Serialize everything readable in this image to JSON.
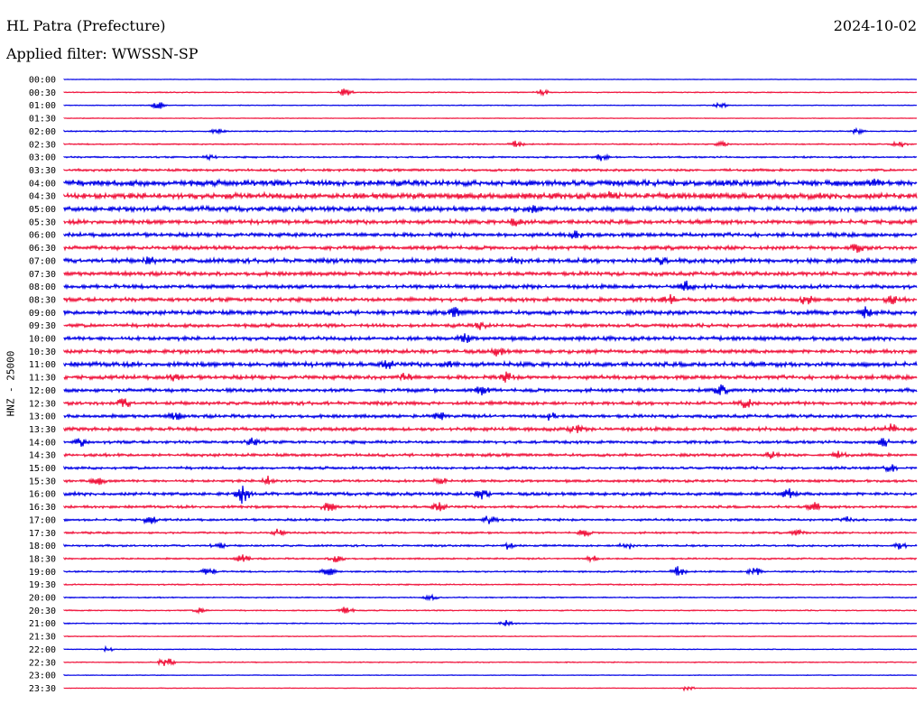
{
  "header": {
    "station": "HL Patra (Prefecture)",
    "date": "2024-10-02",
    "filter": "Applied filter: WWSSN-SP"
  },
  "chart_data": {
    "type": "line",
    "title": "HL Patra (Prefecture)",
    "ylabel": "HNZ - 25000",
    "xlabel": "",
    "colors": {
      "odd": "#0000e6",
      "even": "#f0143c"
    },
    "rows": [
      {
        "label": "00:00",
        "amp": 0.3,
        "bursts": []
      },
      {
        "label": "00:30",
        "amp": 0.6,
        "bursts": [
          [
            0.33,
            5
          ],
          [
            0.56,
            4
          ]
        ]
      },
      {
        "label": "01:00",
        "amp": 0.5,
        "bursts": [
          [
            0.11,
            5
          ],
          [
            0.77,
            3
          ]
        ]
      },
      {
        "label": "01:30",
        "amp": 0.4,
        "bursts": []
      },
      {
        "label": "02:00",
        "amp": 0.7,
        "bursts": [
          [
            0.18,
            3
          ],
          [
            0.93,
            3
          ]
        ]
      },
      {
        "label": "02:30",
        "amp": 0.8,
        "bursts": [
          [
            0.53,
            4
          ],
          [
            0.77,
            3
          ],
          [
            0.98,
            4
          ]
        ]
      },
      {
        "label": "03:00",
        "amp": 1.0,
        "bursts": [
          [
            0.63,
            4
          ],
          [
            0.17,
            3
          ]
        ]
      },
      {
        "label": "03:30",
        "amp": 1.5,
        "bursts": []
      },
      {
        "label": "04:00",
        "amp": 3.6,
        "bursts": [
          [
            0.95,
            5
          ]
        ]
      },
      {
        "label": "04:30",
        "amp": 3.6,
        "bursts": [
          [
            0.64,
            5
          ]
        ]
      },
      {
        "label": "05:00",
        "amp": 3.0,
        "bursts": [
          [
            0.55,
            4
          ]
        ]
      },
      {
        "label": "05:30",
        "amp": 2.6,
        "bursts": [
          [
            0.53,
            5
          ]
        ]
      },
      {
        "label": "06:00",
        "amp": 2.4,
        "bursts": [
          [
            0.6,
            5
          ]
        ]
      },
      {
        "label": "06:30",
        "amp": 2.4,
        "bursts": [
          [
            0.93,
            5
          ]
        ]
      },
      {
        "label": "07:00",
        "amp": 2.8,
        "bursts": [
          [
            0.1,
            5
          ],
          [
            0.53,
            6
          ],
          [
            0.7,
            5
          ]
        ]
      },
      {
        "label": "07:30",
        "amp": 2.4,
        "bursts": []
      },
      {
        "label": "08:00",
        "amp": 2.4,
        "bursts": [
          [
            0.73,
            6
          ]
        ]
      },
      {
        "label": "08:30",
        "amp": 2.4,
        "bursts": [
          [
            0.71,
            6
          ],
          [
            0.87,
            6
          ],
          [
            0.97,
            5
          ]
        ]
      },
      {
        "label": "09:00",
        "amp": 2.6,
        "bursts": [
          [
            0.46,
            6
          ],
          [
            0.94,
            6
          ]
        ]
      },
      {
        "label": "09:30",
        "amp": 2.2,
        "bursts": [
          [
            0.49,
            5
          ]
        ]
      },
      {
        "label": "10:00",
        "amp": 2.4,
        "bursts": [
          [
            0.47,
            6
          ]
        ]
      },
      {
        "label": "10:30",
        "amp": 2.4,
        "bursts": [
          [
            0.51,
            6
          ]
        ]
      },
      {
        "label": "11:00",
        "amp": 2.8,
        "bursts": [
          [
            0.38,
            5
          ],
          [
            0.45,
            5
          ]
        ]
      },
      {
        "label": "11:30",
        "amp": 2.4,
        "bursts": [
          [
            0.13,
            5
          ],
          [
            0.4,
            5
          ],
          [
            0.52,
            6
          ]
        ]
      },
      {
        "label": "12:00",
        "amp": 2.2,
        "bursts": [
          [
            0.49,
            6
          ],
          [
            0.77,
            6
          ]
        ]
      },
      {
        "label": "12:30",
        "amp": 2.2,
        "bursts": [
          [
            0.07,
            6
          ],
          [
            0.8,
            6
          ]
        ]
      },
      {
        "label": "13:00",
        "amp": 2.0,
        "bursts": [
          [
            0.44,
            5
          ],
          [
            0.57,
            5
          ],
          [
            0.13,
            5
          ]
        ]
      },
      {
        "label": "13:30",
        "amp": 2.2,
        "bursts": [
          [
            0.6,
            5
          ],
          [
            0.97,
            6
          ]
        ]
      },
      {
        "label": "14:00",
        "amp": 1.8,
        "bursts": [
          [
            0.02,
            5
          ],
          [
            0.22,
            5
          ],
          [
            0.96,
            6
          ]
        ]
      },
      {
        "label": "14:30",
        "amp": 1.8,
        "bursts": [
          [
            0.83,
            5
          ],
          [
            0.91,
            5
          ]
        ]
      },
      {
        "label": "15:00",
        "amp": 1.6,
        "bursts": [
          [
            0.97,
            5
          ]
        ]
      },
      {
        "label": "15:30",
        "amp": 1.6,
        "bursts": [
          [
            0.04,
            5
          ],
          [
            0.24,
            6
          ],
          [
            0.44,
            5
          ]
        ]
      },
      {
        "label": "16:00",
        "amp": 2.0,
        "bursts": [
          [
            0.21,
            12
          ],
          [
            0.49,
            6
          ],
          [
            0.85,
            6
          ]
        ]
      },
      {
        "label": "16:30",
        "amp": 1.6,
        "bursts": [
          [
            0.31,
            6
          ],
          [
            0.44,
            5
          ],
          [
            0.88,
            5
          ]
        ]
      },
      {
        "label": "17:00",
        "amp": 1.4,
        "bursts": [
          [
            0.5,
            6
          ],
          [
            0.1,
            5
          ],
          [
            0.92,
            4
          ]
        ]
      },
      {
        "label": "17:30",
        "amp": 1.2,
        "bursts": [
          [
            0.25,
            4
          ],
          [
            0.61,
            4
          ],
          [
            0.86,
            4
          ]
        ]
      },
      {
        "label": "18:00",
        "amp": 1.2,
        "bursts": [
          [
            0.18,
            4
          ],
          [
            0.52,
            4
          ],
          [
            0.66,
            5
          ],
          [
            0.98,
            4
          ]
        ]
      },
      {
        "label": "18:30",
        "amp": 1.0,
        "bursts": [
          [
            0.21,
            5
          ],
          [
            0.32,
            6
          ],
          [
            0.62,
            4
          ]
        ]
      },
      {
        "label": "19:00",
        "amp": 1.0,
        "bursts": [
          [
            0.17,
            5
          ],
          [
            0.31,
            5
          ],
          [
            0.72,
            6
          ],
          [
            0.81,
            6
          ]
        ]
      },
      {
        "label": "19:30",
        "amp": 0.8,
        "bursts": []
      },
      {
        "label": "20:00",
        "amp": 0.7,
        "bursts": [
          [
            0.43,
            3
          ]
        ]
      },
      {
        "label": "20:30",
        "amp": 0.7,
        "bursts": [
          [
            0.33,
            5
          ],
          [
            0.16,
            3
          ]
        ]
      },
      {
        "label": "21:00",
        "amp": 0.7,
        "bursts": [
          [
            0.52,
            4
          ]
        ]
      },
      {
        "label": "21:30",
        "amp": 0.5,
        "bursts": []
      },
      {
        "label": "22:00",
        "amp": 0.5,
        "bursts": [
          [
            0.05,
            3
          ]
        ]
      },
      {
        "label": "22:30",
        "amp": 0.6,
        "bursts": [
          [
            0.12,
            7
          ]
        ]
      },
      {
        "label": "23:00",
        "amp": 0.4,
        "bursts": []
      },
      {
        "label": "23:30",
        "amp": 0.4,
        "bursts": [
          [
            0.73,
            3
          ]
        ]
      }
    ]
  }
}
